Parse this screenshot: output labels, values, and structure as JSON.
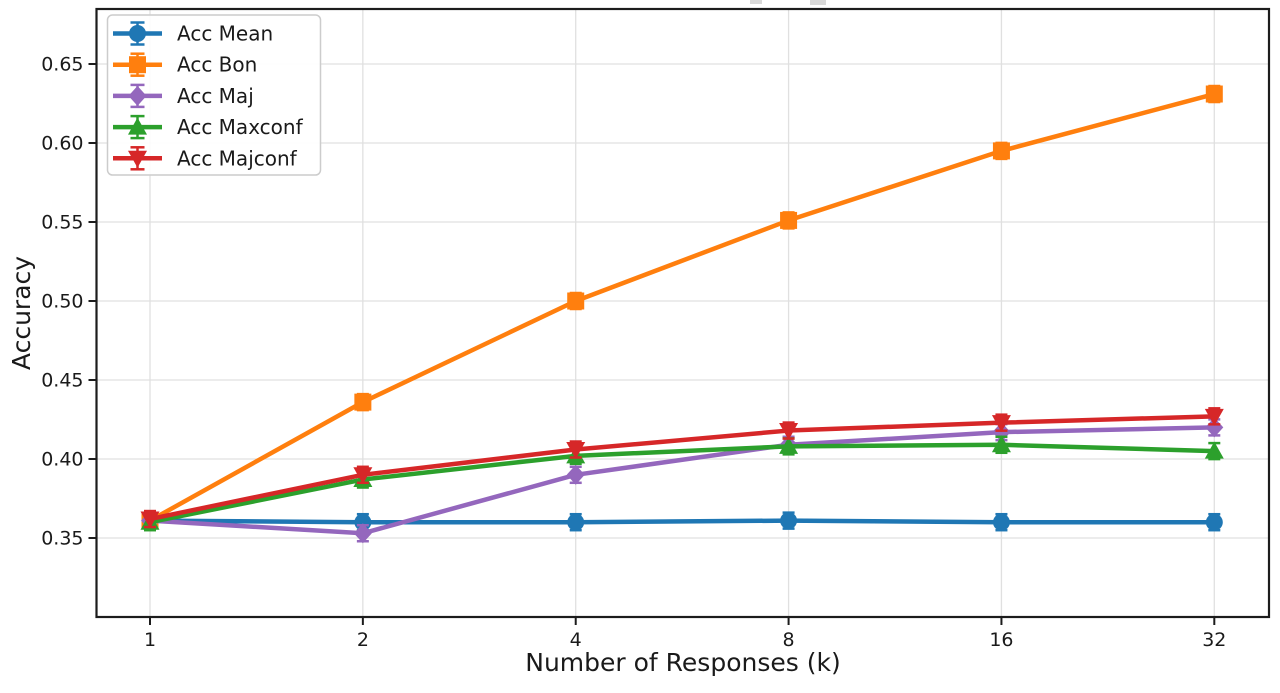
{
  "chart_data": {
    "type": "line",
    "x": [
      1,
      2,
      4,
      8,
      16,
      32
    ],
    "x_scale": "log2",
    "x_tick_labels": [
      "1",
      "2",
      "4",
      "8",
      "16",
      "32"
    ],
    "y_ticks": [
      0.35,
      0.4,
      0.45,
      0.5,
      0.55,
      0.6,
      0.65
    ],
    "y_tick_labels": [
      "0.35",
      "0.40",
      "0.45",
      "0.50",
      "0.55",
      "0.60",
      "0.65"
    ],
    "xlabel": "Number of Responses (k)",
    "ylabel": "Accuracy",
    "ylim": [
      0.3,
      0.685
    ],
    "xlim_log2": [
      -0.25,
      5.25
    ],
    "grid": true,
    "legend_position": "upper-left",
    "error_bars": true,
    "title_clipped": true,
    "series": [
      {
        "name": "Acc Mean",
        "color": "#1f77b4",
        "marker": "circle",
        "values": [
          0.361,
          0.36,
          0.36,
          0.361,
          0.36,
          0.36
        ]
      },
      {
        "name": "Acc Bon",
        "color": "#ff7f0e",
        "marker": "square",
        "values": [
          0.361,
          0.436,
          0.5,
          0.551,
          0.595,
          0.631
        ]
      },
      {
        "name": "Acc Maj",
        "color": "#9467bd",
        "marker": "diamond",
        "values": [
          0.361,
          0.353,
          0.39,
          0.409,
          0.417,
          0.42
        ]
      },
      {
        "name": "Acc Maxconf",
        "color": "#2ca02c",
        "marker": "triangle-up",
        "values": [
          0.36,
          0.387,
          0.402,
          0.408,
          0.409,
          0.405
        ]
      },
      {
        "name": "Acc Majconf",
        "color": "#d62728",
        "marker": "triangle-down",
        "values": [
          0.362,
          0.39,
          0.406,
          0.418,
          0.423,
          0.427
        ]
      }
    ],
    "colors": {
      "grid": "#e0e0e0",
      "spine": "#1c1c1c",
      "legend_border": "#cccccc",
      "legend_background": "#ffffff"
    }
  }
}
